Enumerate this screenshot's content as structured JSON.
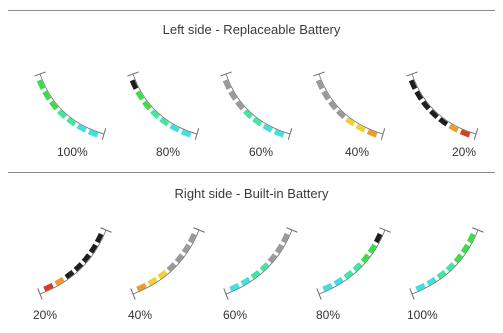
{
  "colors": {
    "gray": "#9a9a9a",
    "black": "#1e1e1e",
    "green": "#3ddc4c",
    "mint": "#3fe7a2",
    "cyan": "#3fe0e0",
    "yellow": "#f0cf37",
    "orange": "#f09a28",
    "red": "#d2401e",
    "frame": "#6a6a6a"
  },
  "left": {
    "title": "Left side - Replaceable Battery",
    "gauges": [
      {
        "label": "100%",
        "level": 1.0,
        "segments": [
          "green",
          "green",
          "green",
          "mint",
          "mint",
          "cyan",
          "cyan"
        ]
      },
      {
        "label": "80%",
        "level": 0.8,
        "segments": [
          "black",
          "green",
          "green",
          "mint",
          "mint",
          "cyan",
          "cyan"
        ]
      },
      {
        "label": "60%",
        "level": 0.6,
        "segments": [
          "gray",
          "gray",
          "gray",
          "mint",
          "mint",
          "cyan",
          "cyan"
        ]
      },
      {
        "label": "40%",
        "level": 0.4,
        "segments": [
          "gray",
          "gray",
          "gray",
          "gray",
          "yellow",
          "yellow",
          "orange"
        ]
      },
      {
        "label": "20%",
        "level": 0.2,
        "segments": [
          "black",
          "black",
          "black",
          "black",
          "black",
          "orange",
          "red"
        ]
      }
    ]
  },
  "right": {
    "title": "Right side - Built-in Battery",
    "gauges": [
      {
        "label": "20%",
        "level": 0.2,
        "segments": [
          "red",
          "orange",
          "black",
          "black",
          "black",
          "black",
          "black"
        ]
      },
      {
        "label": "40%",
        "level": 0.4,
        "segments": [
          "orange",
          "yellow",
          "yellow",
          "gray",
          "gray",
          "gray",
          "gray"
        ]
      },
      {
        "label": "60%",
        "level": 0.6,
        "segments": [
          "cyan",
          "cyan",
          "mint",
          "mint",
          "gray",
          "gray",
          "gray"
        ]
      },
      {
        "label": "80%",
        "level": 0.8,
        "segments": [
          "cyan",
          "cyan",
          "mint",
          "mint",
          "green",
          "green",
          "black"
        ]
      },
      {
        "label": "100%",
        "level": 1.0,
        "segments": [
          "cyan",
          "cyan",
          "mint",
          "mint",
          "green",
          "green",
          "green"
        ]
      }
    ]
  }
}
